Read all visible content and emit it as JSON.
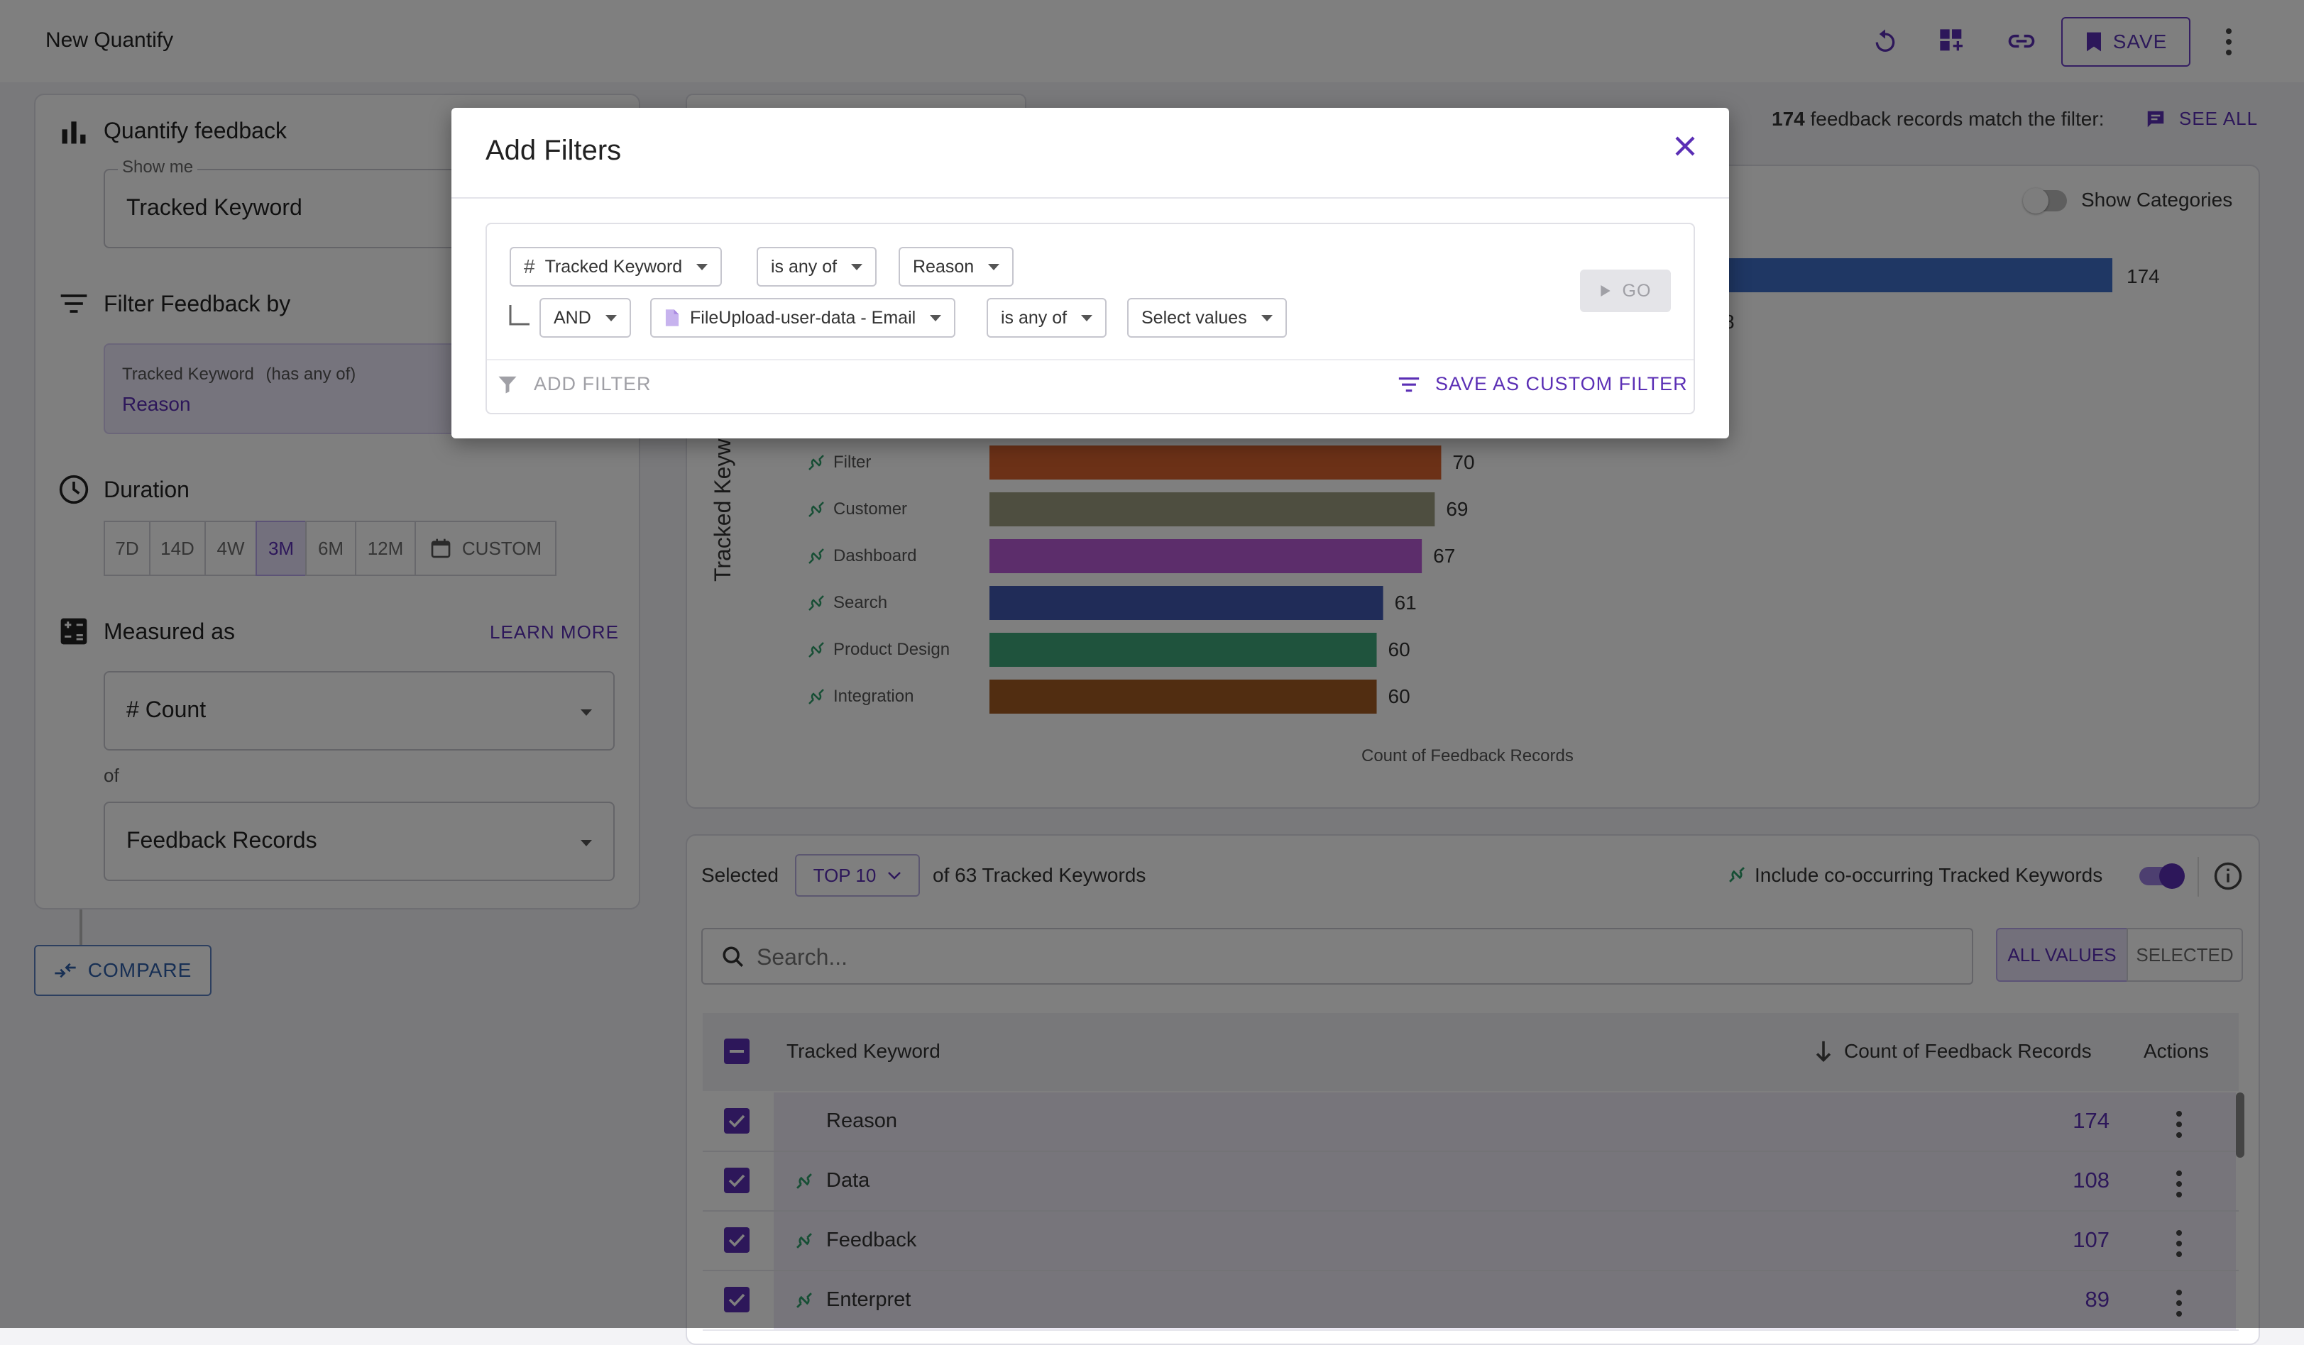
{
  "app": {
    "title": "New Quantify",
    "save_label": "SAVE"
  },
  "left": {
    "quantify_title": "Quantify feedback",
    "show_me_label": "Show me",
    "show_me_value": "Tracked Keyword",
    "filter_title": "Filter Feedback by",
    "filter_item_name": "Tracked Keyword",
    "filter_item_op": "(has any of)",
    "filter_item_value": "Reason",
    "duration_title": "Duration",
    "durations": [
      "7D",
      "14D",
      "4W",
      "3M",
      "6M",
      "12M"
    ],
    "duration_selected": "3M",
    "duration_custom": "CUSTOM",
    "measured_title": "Measured as",
    "learn_more": "LEARN MORE",
    "measure_value": "# Count",
    "of_label": "of",
    "records_value": "Feedback Records",
    "compare_label": "COMPARE"
  },
  "summary": {
    "count": "174",
    "text": "feedback records match the filter:",
    "see_all": "SEE ALL"
  },
  "chart_controls": {
    "show_categories": "Show Categories"
  },
  "chart_data": {
    "type": "bar",
    "orientation": "horizontal",
    "ylabel": "Tracked Keyw",
    "xlabel": "Count of Feedback Records",
    "categories": [
      "Filter",
      "Customer",
      "Dashboard",
      "Search",
      "Product Design",
      "Integration"
    ],
    "values": [
      70,
      69,
      67,
      61,
      60,
      60
    ],
    "colors": [
      "#d9622f",
      "#9c9c80",
      "#b85bd6",
      "#4158b0",
      "#3fa67a",
      "#a35a22"
    ],
    "top_bar": {
      "value": 174,
      "color": "#3f6ec8"
    },
    "partial_tick": "8"
  },
  "table": {
    "selected_label": "Selected",
    "top_select": "TOP 10",
    "of_label": "of 63 Tracked Keywords",
    "cooccur_label": "Include co-occurring Tracked Keywords",
    "search_placeholder": "Search...",
    "tab_all": "ALL VALUES",
    "tab_selected": "SELECTED",
    "col_keyword": "Tracked Keyword",
    "col_count": "Count of Feedback Records",
    "col_actions": "Actions",
    "rows": [
      {
        "name": "Reason",
        "count": "174"
      },
      {
        "name": "Data",
        "count": "108"
      },
      {
        "name": "Feedback",
        "count": "107"
      },
      {
        "name": "Enterpret",
        "count": "89"
      }
    ]
  },
  "modal": {
    "title": "Add Filters",
    "row1": {
      "field": "Tracked Keyword",
      "op": "is any of",
      "value": "Reason"
    },
    "row2": {
      "logic": "AND",
      "field": "FileUpload-user-data - Email",
      "op": "is any of",
      "value": "Select values"
    },
    "go_label": "GO",
    "add_filter": "ADD FILTER",
    "save_custom": "SAVE AS CUSTOM FILTER"
  },
  "colors": {
    "accent": "#5b2fb5",
    "modal_link": "#5b2fb5"
  }
}
